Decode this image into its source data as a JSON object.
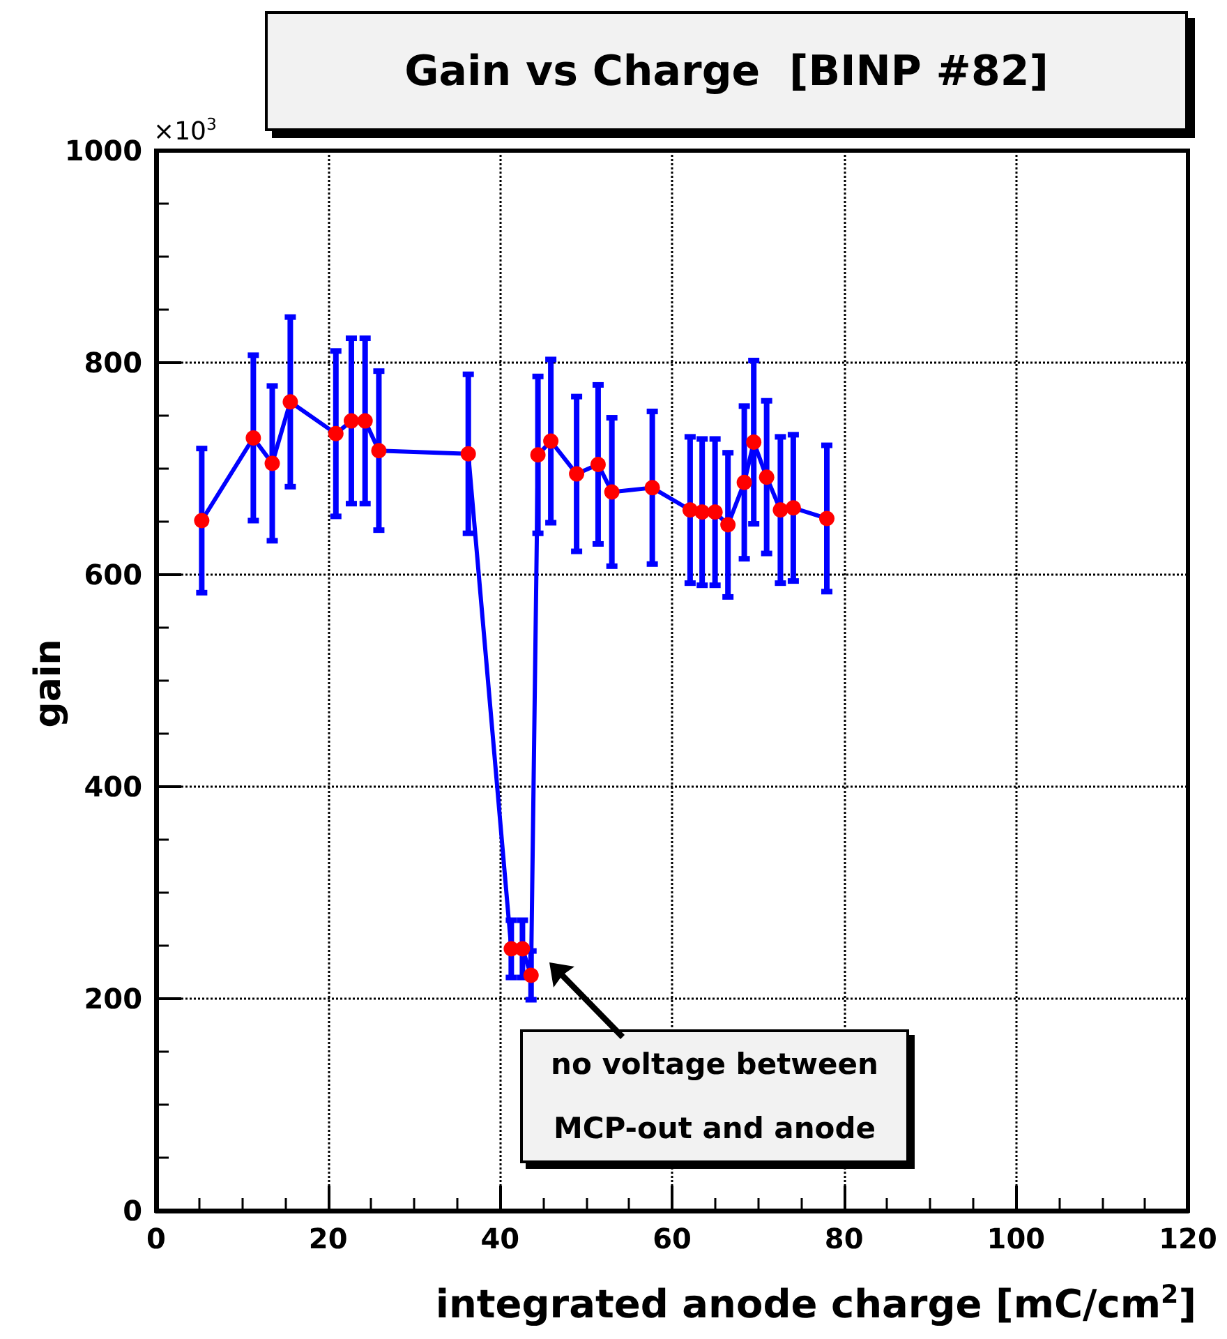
{
  "chart_data": {
    "type": "line",
    "title": "Gain vs Charge  [BINP #82]",
    "xlabel": "integrated anode charge   [mC/cm$^{2}$]",
    "ylabel": "gain",
    "x": [
      5.3,
      11.3,
      13.5,
      15.6,
      20.9,
      22.7,
      24.3,
      25.9,
      36.3,
      41.3,
      42.6,
      43.6,
      44.4,
      45.9,
      48.9,
      51.4,
      53.0,
      57.7,
      62.1,
      63.5,
      65.0,
      66.5,
      68.4,
      69.5,
      71.0,
      72.6,
      74.1,
      78.0
    ],
    "series": [
      {
        "color": "#0000ff",
        "colors": [
          "#ff0000",
          "#ff0000",
          "#ff0000",
          "#ff0000",
          "#ff0000",
          "#ff0000",
          "#ff0000",
          "#ff0000",
          "#ff0000",
          "#ff0000",
          "#ff0000",
          "#ff0000",
          "#ff0000",
          "#ff0000",
          "#ff0000",
          "#ff0000",
          "#ff0000",
          "#ff0000",
          "#ff0000",
          "#ff0000",
          "#ff0000",
          "#ff0000",
          "#ff0000",
          "#ff0000",
          "#ff0000",
          "#ff0000",
          "#ff0000",
          "#ff0000"
        ],
        "values": [
          651,
          729,
          705,
          763,
          733,
          745,
          745,
          717,
          714,
          247,
          247,
          222,
          713,
          726,
          695,
          704,
          678,
          682,
          661,
          659,
          659,
          647,
          687,
          725,
          692,
          661,
          663,
          653
        ],
        "errors": [
          68,
          78,
          73,
          80,
          78,
          78,
          78,
          75,
          75,
          27,
          27,
          23,
          74,
          77,
          73,
          75,
          70,
          72,
          69,
          69,
          69,
          68,
          72,
          77,
          72,
          69,
          69,
          69
        ]
      }
    ],
    "xlim": [
      0,
      120
    ],
    "xticks": [
      0,
      20,
      40,
      60,
      80,
      100,
      120
    ],
    "ylim": [
      0,
      1000
    ],
    "yticks": [
      0,
      200,
      400,
      600,
      800,
      1000
    ],
    "grid": true,
    "marker": "circle",
    "line_style": "solid",
    "annotations": [
      "×10$^{3}$",
      "no voltage between\nMCP-out and anode"
    ]
  }
}
